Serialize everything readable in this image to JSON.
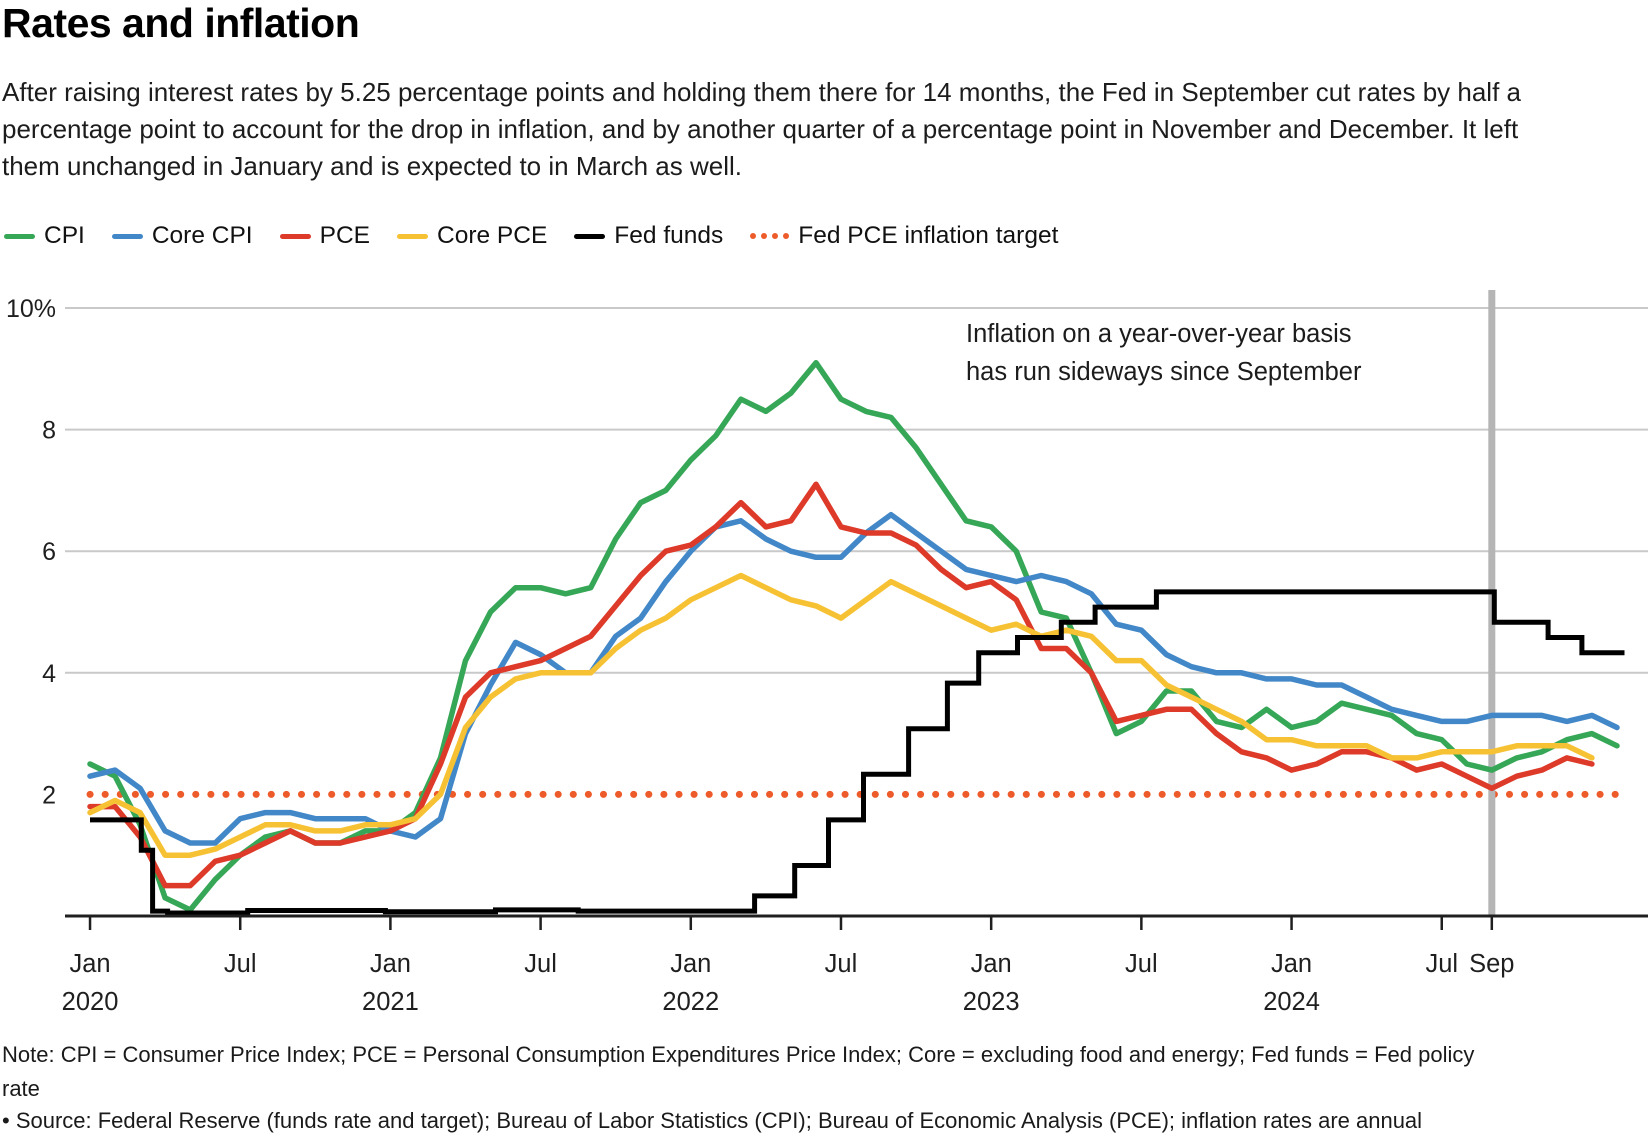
{
  "header": {
    "title": "Rates and inflation",
    "subtitle": "After raising interest rates by 5.25 percentage points and holding them there for 14 months, the Fed in September cut rates by half a percentage point to account for the drop in inflation, and by another quarter of a percentage point in November and December. It left them unchanged in January and is expected to in March as well."
  },
  "legend": {
    "items": [
      {
        "label": "CPI",
        "color": "#36a657",
        "style": "solid"
      },
      {
        "label": "Core CPI",
        "color": "#4288c8",
        "style": "solid"
      },
      {
        "label": "PCE",
        "color": "#dd3a2a",
        "style": "solid"
      },
      {
        "label": "Core PCE",
        "color": "#f6c234",
        "style": "solid"
      },
      {
        "label": "Fed funds",
        "color": "#000000",
        "style": "solid"
      },
      {
        "label": "Fed PCE inflation target",
        "color": "#ee5b2a",
        "style": "dotted"
      }
    ]
  },
  "annotation": {
    "line1": "Inflation on a year-over-year basis",
    "line2": "has run sideways since September"
  },
  "footer": {
    "note_line1": "Note: CPI = Consumer Price Index; PCE = Personal Consumption Expenditures Price Index; Core = excluding food and energy; Fed funds = Fed policy",
    "note_line2": "rate",
    "source": "• Source: Federal Reserve (funds rate and target); Bureau of Labor Statistics (CPI); Bureau of Economic Analysis (PCE); inflation rates are annual"
  },
  "colors": {
    "gridline": "#c9c9c9",
    "axis": "#1f1f1f",
    "tick_label": "#1f1f1f",
    "event_line": "#b5b5b5",
    "annotation_text": "#1c1c1c"
  },
  "chart_data": {
    "type": "line",
    "x_unit": "months since Jan 2020",
    "ylim": [
      0,
      10
    ],
    "grid": true,
    "legend_position": "top",
    "yticks": [
      {
        "value": 10,
        "label": "10%"
      },
      {
        "value": 8,
        "label": "8"
      },
      {
        "value": 6,
        "label": "6"
      },
      {
        "value": 4,
        "label": "4"
      },
      {
        "value": 2,
        "label": "2"
      }
    ],
    "xticks": [
      {
        "month": 0,
        "label": "Jan",
        "year": "2020"
      },
      {
        "month": 6,
        "label": "Jul",
        "year": ""
      },
      {
        "month": 12,
        "label": "Jan",
        "year": "2021"
      },
      {
        "month": 18,
        "label": "Jul",
        "year": ""
      },
      {
        "month": 24,
        "label": "Jan",
        "year": "2022"
      },
      {
        "month": 30,
        "label": "Jul",
        "year": ""
      },
      {
        "month": 36,
        "label": "Jan",
        "year": "2023"
      },
      {
        "month": 42,
        "label": "Jul",
        "year": ""
      },
      {
        "month": 48,
        "label": "Jan",
        "year": "2024"
      },
      {
        "month": 54,
        "label": "Jul",
        "year": ""
      },
      {
        "month": 56,
        "label": "Sep",
        "year": ""
      }
    ],
    "target_line": {
      "value": 2,
      "name": "Fed PCE inflation target",
      "color": "#ee5b2a",
      "start_month": 0,
      "end_month": 61.2
    },
    "event_line": {
      "month": 56,
      "note": "September 2024 rate cut"
    },
    "series": [
      {
        "name": "CPI",
        "color": "#36a657",
        "type": "monthly",
        "start_month": 0,
        "values": [
          2.5,
          2.3,
          1.5,
          0.3,
          0.1,
          0.6,
          1.0,
          1.3,
          1.4,
          1.2,
          1.2,
          1.4,
          1.4,
          1.7,
          2.6,
          4.2,
          5.0,
          5.4,
          5.4,
          5.3,
          5.4,
          6.2,
          6.8,
          7.0,
          7.5,
          7.9,
          8.5,
          8.3,
          8.6,
          9.1,
          8.5,
          8.3,
          8.2,
          7.7,
          7.1,
          6.5,
          6.4,
          6.0,
          5.0,
          4.9,
          4.0,
          3.0,
          3.2,
          3.7,
          3.7,
          3.2,
          3.1,
          3.4,
          3.1,
          3.2,
          3.5,
          3.4,
          3.3,
          3.0,
          2.9,
          2.5,
          2.4,
          2.6,
          2.7,
          2.9,
          3.0,
          2.8
        ]
      },
      {
        "name": "Core CPI",
        "color": "#4288c8",
        "type": "monthly",
        "start_month": 0,
        "values": [
          2.3,
          2.4,
          2.1,
          1.4,
          1.2,
          1.2,
          1.6,
          1.7,
          1.7,
          1.6,
          1.6,
          1.6,
          1.4,
          1.3,
          1.6,
          3.0,
          3.8,
          4.5,
          4.3,
          4.0,
          4.0,
          4.6,
          4.9,
          5.5,
          6.0,
          6.4,
          6.5,
          6.2,
          6.0,
          5.9,
          5.9,
          6.3,
          6.6,
          6.3,
          6.0,
          5.7,
          5.6,
          5.5,
          5.6,
          5.5,
          5.3,
          4.8,
          4.7,
          4.3,
          4.1,
          4.0,
          4.0,
          3.9,
          3.9,
          3.8,
          3.8,
          3.6,
          3.4,
          3.3,
          3.2,
          3.2,
          3.3,
          3.3,
          3.3,
          3.2,
          3.3,
          3.1
        ]
      },
      {
        "name": "PCE",
        "color": "#dd3a2a",
        "type": "monthly",
        "start_month": 0,
        "values": [
          1.8,
          1.8,
          1.3,
          0.5,
          0.5,
          0.9,
          1.0,
          1.2,
          1.4,
          1.2,
          1.2,
          1.3,
          1.4,
          1.6,
          2.5,
          3.6,
          4.0,
          4.1,
          4.2,
          4.4,
          4.6,
          5.1,
          5.6,
          6.0,
          6.1,
          6.4,
          6.8,
          6.4,
          6.5,
          7.1,
          6.4,
          6.3,
          6.3,
          6.1,
          5.7,
          5.4,
          5.5,
          5.2,
          4.4,
          4.4,
          4.0,
          3.2,
          3.3,
          3.4,
          3.4,
          3.0,
          2.7,
          2.6,
          2.4,
          2.5,
          2.7,
          2.7,
          2.6,
          2.4,
          2.5,
          2.3,
          2.1,
          2.3,
          2.4,
          2.6,
          2.5
        ]
      },
      {
        "name": "Core PCE",
        "color": "#f6c234",
        "type": "monthly",
        "start_month": 0,
        "values": [
          1.7,
          1.9,
          1.7,
          1.0,
          1.0,
          1.1,
          1.3,
          1.5,
          1.5,
          1.4,
          1.4,
          1.5,
          1.5,
          1.6,
          2.0,
          3.1,
          3.6,
          3.9,
          4.0,
          4.0,
          4.0,
          4.4,
          4.7,
          4.9,
          5.2,
          5.4,
          5.6,
          5.4,
          5.2,
          5.1,
          4.9,
          5.2,
          5.5,
          5.3,
          5.1,
          4.9,
          4.7,
          4.8,
          4.6,
          4.7,
          4.6,
          4.2,
          4.2,
          3.8,
          3.6,
          3.4,
          3.2,
          2.9,
          2.9,
          2.8,
          2.8,
          2.8,
          2.6,
          2.6,
          2.7,
          2.7,
          2.7,
          2.8,
          2.8,
          2.8,
          2.6
        ]
      },
      {
        "name": "Fed funds",
        "color": "#000000",
        "type": "step",
        "end_month": 61.3,
        "points": [
          [
            0,
            1.58
          ],
          [
            2.05,
            1.08
          ],
          [
            2.5,
            0.08
          ],
          [
            3.1,
            0.05
          ],
          [
            6.3,
            0.09
          ],
          [
            11.8,
            0.07
          ],
          [
            16.2,
            0.1
          ],
          [
            19.5,
            0.08
          ],
          [
            26.55,
            0.33
          ],
          [
            28.15,
            0.83
          ],
          [
            29.5,
            1.58
          ],
          [
            30.9,
            2.33
          ],
          [
            32.7,
            3.08
          ],
          [
            34.25,
            3.83
          ],
          [
            35.5,
            4.33
          ],
          [
            37.05,
            4.58
          ],
          [
            38.8,
            4.83
          ],
          [
            40.15,
            5.08
          ],
          [
            42.6,
            5.33
          ],
          [
            56.1,
            4.83
          ],
          [
            58.25,
            4.58
          ],
          [
            59.6,
            4.33
          ]
        ]
      }
    ]
  }
}
